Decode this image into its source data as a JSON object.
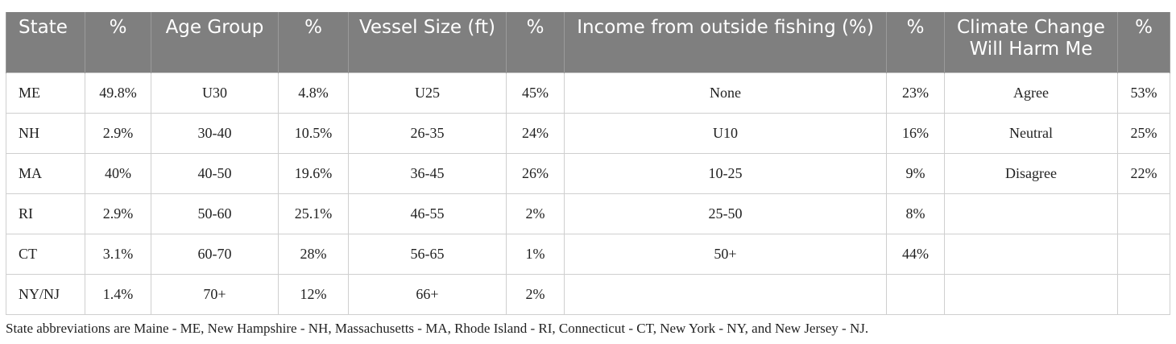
{
  "table": {
    "columns": [
      "State",
      "%",
      "Age Group",
      "%",
      "Vessel Size (ft)",
      "%",
      "Income from outside fishing (%)",
      "%",
      "Climate Change Will Harm Me",
      "%"
    ],
    "rows": [
      [
        "ME",
        "49.8%",
        "U30",
        "4.8%",
        "U25",
        "45%",
        "None",
        "23%",
        "Agree",
        "53%"
      ],
      [
        "NH",
        "2.9%",
        "30-40",
        "10.5%",
        "26-35",
        "24%",
        "U10",
        "16%",
        "Neutral",
        "25%"
      ],
      [
        "MA",
        "40%",
        "40-50",
        "19.6%",
        "36-45",
        "26%",
        "10-25",
        "9%",
        "Disagree",
        "22%"
      ],
      [
        "RI",
        "2.9%",
        "50-60",
        "25.1%",
        "46-55",
        "2%",
        "25-50",
        "8%",
        null,
        null
      ],
      [
        "CT",
        "3.1%",
        "60-70",
        "28%",
        "56-65",
        "1%",
        "50+",
        "44%",
        null,
        null
      ],
      [
        "NY/NJ",
        "1.4%",
        "70+",
        "12%",
        "66+",
        "2%",
        null,
        null,
        null,
        null
      ]
    ],
    "footnote": "State abbreviations are Maine - ME, New Hampshire - NH, Massachusetts - MA, Rhode Island - RI, Connecticut - CT, New York - NY, and New Jersey - NJ."
  }
}
